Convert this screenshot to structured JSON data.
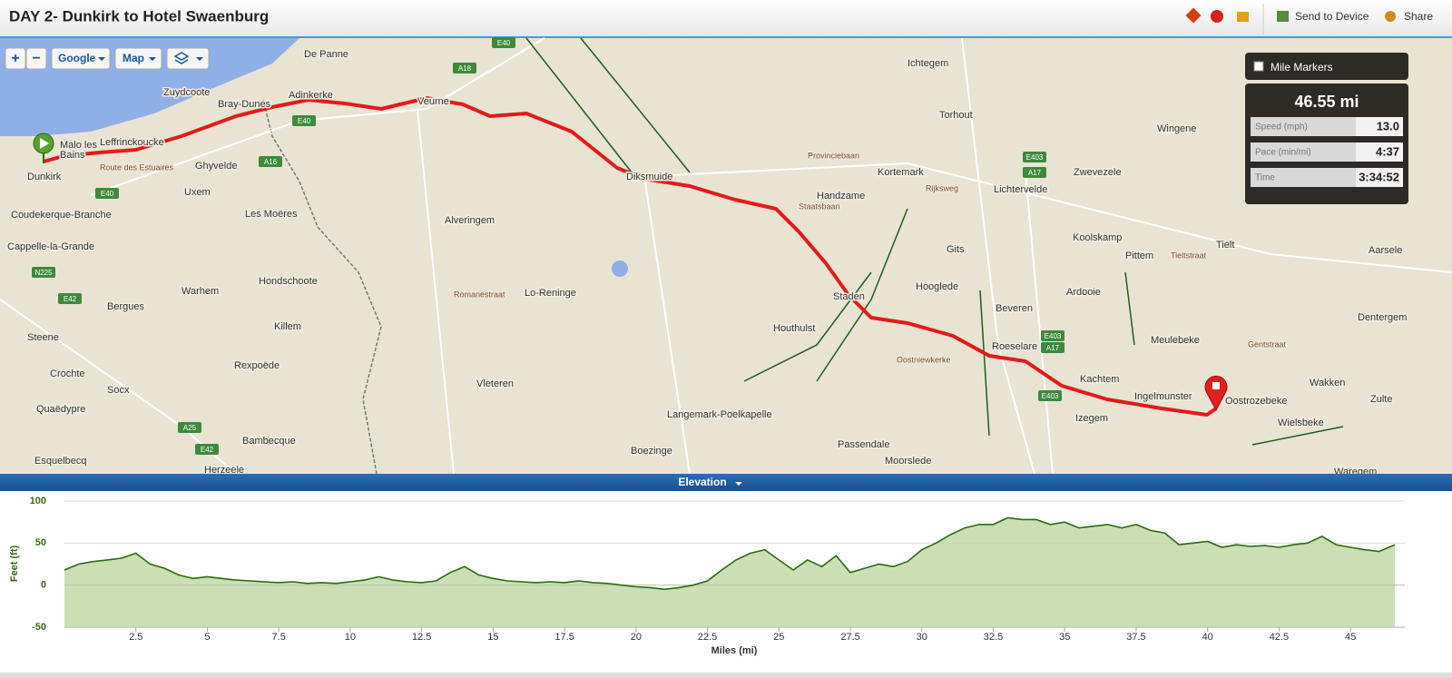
{
  "header": {
    "title": "DAY 2- Dunkirk to Hotel Swaenburg",
    "actions": [
      "Send to Device",
      "Share"
    ]
  },
  "map_controls": {
    "zoom_in": "+",
    "zoom_out": "−",
    "provider": "Google",
    "view": "Map"
  },
  "map": {
    "labels": [
      "De Panne",
      "Bray-Dunes",
      "Zuydcoote",
      "Adinkerke",
      "Veurne",
      "Malo les",
      "Bains",
      "Leffrinckoucke",
      "Dunkirk",
      "Ghyvelde",
      "Uxem",
      "Coudekerque-Branche",
      "Cappelle-la-Grande",
      "Les Moëres",
      "Hondschoote",
      "Warhem",
      "Bergues",
      "Killem",
      "Steene",
      "Rexpoëde",
      "Crochte",
      "Socx",
      "Quaëdypre",
      "Bambecque",
      "Esquelbecq",
      "Herzeele",
      "Alveringem",
      "Lo-Reninge",
      "Vleteren",
      "Boezinge",
      "Langemark-Poelkapelle",
      "Houthulst",
      "Diksmuide",
      "Handzame",
      "Kortemark",
      "Staden",
      "Ichtegem",
      "Torhout",
      "Gits",
      "Hooglede",
      "Beveren",
      "Roeselare",
      "Izegem",
      "Ingelmunster",
      "Kachtem",
      "Moorslede",
      "Passendale",
      "Lichtervelde",
      "Koolskamp",
      "Pittem",
      "Ardooie",
      "Zwevezele",
      "Wingene",
      "Tielt",
      "Meulebeke",
      "Oostrozebeke",
      "Wielsbeke",
      "Waregem",
      "Zulte",
      "Wakken",
      "Aarsele",
      "Dentergem",
      "Oostniewkerke",
      "Route des Estuaires",
      "Romanestraat",
      "Staatsbaan",
      "Rijksweg",
      "Provinciebaan",
      "Tieltstraat",
      "Gentstraat",
      "E40",
      "A18",
      "E40",
      "A16",
      "E40",
      "N225",
      "E42",
      "A25",
      "E42",
      "E403",
      "A17",
      "E403",
      "A17",
      "E403"
    ]
  },
  "stats": {
    "mile_markers": "Mile Markers",
    "distance": "46.55 mi",
    "rows": [
      {
        "label": "Speed (mph)",
        "value": "13.0"
      },
      {
        "label": "Pace (min/mi)",
        "value": "4:37"
      },
      {
        "label": "Time",
        "value": "3:34:52"
      }
    ]
  },
  "elevation_tab": "Elevation",
  "chart_data": {
    "type": "area",
    "y_label": "Feet (ft)",
    "x_label": "Miles (mi)",
    "x": [
      0,
      0.5,
      1,
      1.5,
      2,
      2.5,
      3,
      3.5,
      4,
      4.5,
      5,
      5.5,
      6,
      6.5,
      7,
      7.5,
      8,
      8.5,
      9,
      9.5,
      10,
      10.5,
      11,
      11.5,
      12,
      12.5,
      13,
      13.5,
      14,
      14.5,
      15,
      15.5,
      16,
      16.5,
      17,
      17.5,
      18,
      18.5,
      19,
      19.5,
      20,
      20.5,
      21,
      21.5,
      22,
      22.5,
      23,
      23.5,
      24,
      24.5,
      25,
      25.5,
      26,
      26.5,
      27,
      27.5,
      28,
      28.5,
      29,
      29.5,
      30,
      30.5,
      31,
      31.5,
      32,
      32.5,
      33,
      33.5,
      34,
      34.5,
      35,
      35.5,
      36,
      36.5,
      37,
      37.5,
      38,
      38.5,
      39,
      39.5,
      40,
      40.5,
      41,
      41.5,
      42,
      42.5,
      43,
      43.5,
      44,
      44.5,
      45,
      45.5,
      46,
      46.55
    ],
    "series": [
      {
        "name": "Elevation",
        "color": "#2d6a10",
        "values": [
          18,
          25,
          28,
          30,
          32,
          38,
          25,
          20,
          12,
          8,
          10,
          8,
          6,
          5,
          4,
          3,
          4,
          2,
          3,
          2,
          4,
          6,
          10,
          6,
          4,
          3,
          5,
          15,
          22,
          12,
          8,
          5,
          4,
          3,
          4,
          3,
          5,
          3,
          2,
          0,
          -2,
          -3,
          -5,
          -3,
          0,
          5,
          18,
          30,
          38,
          42,
          30,
          18,
          30,
          22,
          35,
          15,
          20,
          25,
          22,
          28,
          42,
          50,
          60,
          68,
          72,
          72,
          80,
          78,
          78,
          72,
          75,
          68,
          70,
          72,
          68,
          72,
          65,
          62,
          48,
          50,
          52,
          45,
          48,
          46,
          47,
          45,
          48,
          50,
          58,
          48,
          45,
          42,
          40,
          48
        ]
      }
    ],
    "xlim": [
      0,
      46.9
    ],
    "xticks": [
      2.5,
      5,
      7.5,
      10,
      12.5,
      15,
      17.5,
      20,
      22.5,
      25,
      27.5,
      30,
      32.5,
      35,
      37.5,
      40,
      42.5,
      45
    ],
    "ylim": [
      -50,
      100
    ],
    "yticks": [
      -50,
      0,
      50,
      100
    ],
    "grid": true
  }
}
